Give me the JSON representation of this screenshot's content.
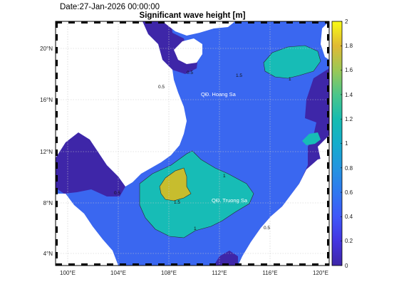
{
  "date_label": "Date:27-Jan-2026 00:00:00",
  "title": "Significant wave height [m]",
  "colors": {
    "land": "#ffffff",
    "level_0": "#3e26a8",
    "level_05": "#3a67f0",
    "level_1": "#17bcb6",
    "level_15": "#c7bd2e",
    "grid": "#c8c8c8"
  },
  "x_ticks": [
    "100°E",
    "104°E",
    "108°E",
    "112°E",
    "116°E",
    "120°E"
  ],
  "y_ticks": [
    "20°N",
    "16°N",
    "12°N",
    "8°N",
    "4°N"
  ],
  "colorbar_ticks": [
    "2",
    "1.8",
    "1.6",
    "1.4",
    "1.2",
    "1",
    "0.8",
    "0.6",
    "0.4",
    "0.2",
    "0"
  ],
  "contour_labels": {
    "mid_1": "1",
    "south_1": "1",
    "peak_15": "1.5",
    "ne_1": "1",
    "ne_15": "1.5",
    "gulf_05": "0.5",
    "coast_05": "0.5",
    "east_05": "0.5",
    "north_05": "0.5"
  },
  "place_labels": {
    "paracel": "QĐ. Hoang Sa",
    "spratly": "QĐ. Truong Sa"
  }
}
